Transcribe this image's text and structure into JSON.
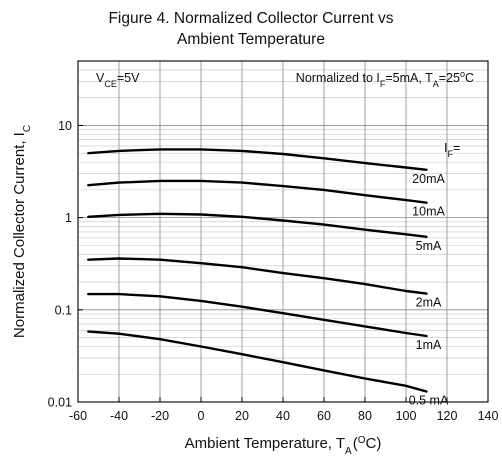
{
  "figure": {
    "title_line1": "Figure 4. Normalized Collector Current vs",
    "title_line2": "Ambient Temperature"
  },
  "chart_data": {
    "type": "line",
    "title": "Figure 4. Normalized Collector Current vs Ambient Temperature",
    "xlabel": {
      "main": "Ambient Temperature, T",
      "sub": "A",
      "tail1": "(",
      "sup": "O",
      "tail2": "C)"
    },
    "ylabel": {
      "main": "Normalized Collector Current, I",
      "sub": "C"
    },
    "xlim": [
      -60,
      140
    ],
    "ylim": [
      0.01,
      50
    ],
    "y_scale": "log",
    "grid": true,
    "x_ticks": [
      "-60",
      "-40",
      "-20",
      "0",
      "20",
      "40",
      "60",
      "80",
      "100",
      "120",
      "140"
    ],
    "y_ticks": [
      "0.01",
      "0.1",
      "1",
      "10"
    ],
    "annotation_left": {
      "prefix": "V",
      "sub": "CE",
      "suffix": "=5V"
    },
    "annotation_right": {
      "text1": "Normalized to I",
      "sub1": "F",
      "text2": "=5mA, T",
      "sub2": "A",
      "text3": "=25",
      "sup": "o",
      "text4": "C"
    },
    "legend_header": {
      "main": "I",
      "sub": "F",
      "suffix": "="
    },
    "series": [
      {
        "name": "20mA",
        "x": [
          -55,
          -40,
          -20,
          0,
          20,
          40,
          60,
          80,
          100,
          110
        ],
        "y": [
          5.0,
          5.3,
          5.5,
          5.5,
          5.3,
          4.9,
          4.4,
          3.9,
          3.5,
          3.3
        ]
      },
      {
        "name": "10mA",
        "x": [
          -55,
          -40,
          -20,
          0,
          20,
          40,
          60,
          80,
          100,
          110
        ],
        "y": [
          2.25,
          2.4,
          2.5,
          2.5,
          2.4,
          2.2,
          2.0,
          1.75,
          1.55,
          1.45
        ]
      },
      {
        "name": "5mA",
        "x": [
          -55,
          -40,
          -20,
          0,
          20,
          40,
          60,
          80,
          100,
          110
        ],
        "y": [
          1.02,
          1.07,
          1.1,
          1.08,
          1.02,
          0.93,
          0.84,
          0.74,
          0.66,
          0.62
        ]
      },
      {
        "name": "2mA",
        "x": [
          -55,
          -40,
          -20,
          0,
          20,
          40,
          60,
          80,
          100,
          110
        ],
        "y": [
          0.35,
          0.36,
          0.35,
          0.32,
          0.29,
          0.25,
          0.22,
          0.19,
          0.16,
          0.15
        ]
      },
      {
        "name": "1mA",
        "x": [
          -55,
          -40,
          -20,
          0,
          20,
          40,
          60,
          80,
          100,
          110
        ],
        "y": [
          0.148,
          0.148,
          0.14,
          0.125,
          0.108,
          0.092,
          0.078,
          0.066,
          0.056,
          0.052
        ]
      },
      {
        "name": "0.5 mA",
        "x": [
          -55,
          -40,
          -20,
          0,
          20,
          40,
          60,
          80,
          100,
          110
        ],
        "y": [
          0.058,
          0.055,
          0.048,
          0.04,
          0.033,
          0.027,
          0.022,
          0.018,
          0.015,
          0.013
        ]
      }
    ]
  }
}
